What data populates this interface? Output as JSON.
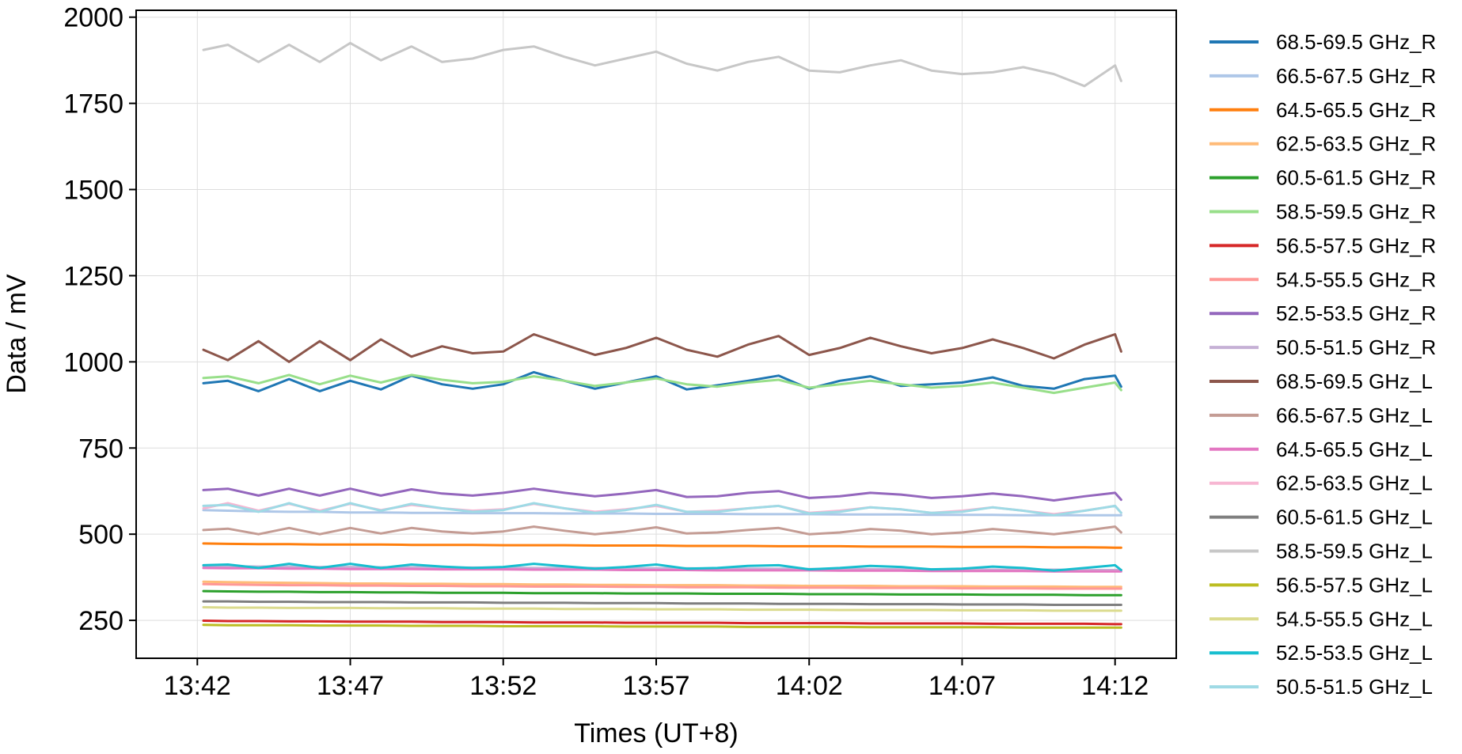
{
  "chart_data": {
    "type": "line",
    "title": "",
    "xlabel": "Times (UT+8)",
    "ylabel": "Data / mV",
    "grid": true,
    "legend_placement": "outside-right",
    "x_unit": "time (HH:MM, UT+8)",
    "xlim": [
      "13:40",
      "14:14"
    ],
    "ylim": [
      140,
      2020
    ],
    "x_ticks": [
      "13:42",
      "13:47",
      "13:52",
      "13:57",
      "14:02",
      "14:07",
      "14:12"
    ],
    "y_ticks": [
      250,
      500,
      750,
      1000,
      1250,
      1500,
      1750,
      2000
    ],
    "x": [
      "13:42.2",
      "13:43",
      "13:44",
      "13:45",
      "13:46",
      "13:47",
      "13:48",
      "13:49",
      "13:50",
      "13:51",
      "13:52",
      "13:53",
      "13:54",
      "13:55",
      "13:56",
      "13:57",
      "13:58",
      "13:59",
      "14:00",
      "14:01",
      "14:02",
      "14:03",
      "14:04",
      "14:05",
      "14:06",
      "14:07",
      "14:08",
      "14:09",
      "14:10",
      "14:11",
      "14:12",
      "14:12.2"
    ],
    "series": [
      {
        "name": "68.5-69.5 GHz_R",
        "color": "#1f77b4",
        "values": [
          938,
          945,
          915,
          950,
          915,
          945,
          920,
          960,
          935,
          922,
          935,
          970,
          945,
          922,
          940,
          958,
          920,
          932,
          945,
          960,
          922,
          945,
          958,
          930,
          935,
          940,
          955,
          930,
          922,
          950,
          960,
          928
        ]
      },
      {
        "name": "66.5-67.5 GHz_R",
        "color": "#aec7e8",
        "values": [
          570,
          568,
          566,
          565,
          565,
          563,
          563,
          562,
          562,
          561,
          561,
          561,
          560,
          560,
          560,
          559,
          559,
          559,
          558,
          558,
          558,
          557,
          557,
          557,
          556,
          556,
          556,
          555,
          555,
          555,
          555,
          555
        ]
      },
      {
        "name": "64.5-65.5 GHz_R",
        "color": "#ff7f0e",
        "values": [
          473,
          472,
          471,
          471,
          470,
          470,
          470,
          469,
          469,
          469,
          468,
          468,
          468,
          467,
          467,
          467,
          466,
          466,
          466,
          465,
          465,
          465,
          464,
          464,
          464,
          463,
          463,
          463,
          462,
          462,
          461,
          461
        ]
      },
      {
        "name": "62.5-63.5 GHz_R",
        "color": "#ffbb78",
        "values": [
          362,
          361,
          360,
          359,
          358,
          357,
          357,
          356,
          356,
          355,
          355,
          354,
          354,
          353,
          353,
          352,
          352,
          352,
          351,
          351,
          350,
          350,
          350,
          349,
          349,
          349,
          348,
          348,
          348,
          347,
          347,
          347
        ]
      },
      {
        "name": "60.5-61.5 GHz_R",
        "color": "#2ca02c",
        "values": [
          335,
          334,
          333,
          333,
          332,
          332,
          331,
          331,
          330,
          330,
          330,
          329,
          329,
          329,
          328,
          328,
          328,
          327,
          327,
          327,
          326,
          326,
          326,
          325,
          325,
          325,
          324,
          324,
          324,
          323,
          323,
          323
        ]
      },
      {
        "name": "58.5-59.5 GHz_R",
        "color": "#98df8a",
        "values": [
          953,
          958,
          938,
          962,
          935,
          960,
          940,
          962,
          948,
          938,
          942,
          958,
          945,
          930,
          940,
          952,
          935,
          928,
          940,
          948,
          925,
          935,
          945,
          935,
          925,
          930,
          940,
          925,
          910,
          925,
          940,
          918
        ]
      },
      {
        "name": "56.5-57.5 GHz_R",
        "color": "#d62728",
        "values": [
          249,
          248,
          248,
          247,
          247,
          246,
          246,
          246,
          245,
          245,
          245,
          244,
          244,
          244,
          243,
          243,
          243,
          243,
          242,
          242,
          242,
          242,
          241,
          241,
          241,
          241,
          240,
          240,
          240,
          240,
          239,
          239
        ]
      },
      {
        "name": "54.5-55.5 GHz_R",
        "color": "#ff9896",
        "values": [
          355,
          354,
          353,
          352,
          352,
          351,
          351,
          350,
          350,
          349,
          349,
          348,
          348,
          348,
          347,
          347,
          346,
          346,
          346,
          345,
          345,
          345,
          344,
          344,
          344,
          343,
          343,
          343,
          342,
          342,
          342,
          342
        ]
      },
      {
        "name": "52.5-53.5 GHz_R",
        "color": "#9467bd",
        "values": [
          628,
          632,
          612,
          632,
          612,
          632,
          612,
          630,
          618,
          612,
          620,
          632,
          620,
          610,
          618,
          628,
          608,
          610,
          620,
          625,
          605,
          610,
          620,
          615,
          605,
          610,
          618,
          610,
          598,
          610,
          620,
          600
        ]
      },
      {
        "name": "50.5-51.5 GHz_R",
        "color": "#c5b0d5",
        "values": [
          408,
          407,
          406,
          406,
          405,
          405,
          404,
          404,
          403,
          403,
          403,
          402,
          402,
          402,
          401,
          401,
          401,
          400,
          400,
          400,
          399,
          399,
          399,
          398,
          398,
          398,
          397,
          397,
          397,
          396,
          396,
          396
        ]
      },
      {
        "name": "68.5-69.5 GHz_L",
        "color": "#8c564b",
        "values": [
          1035,
          1005,
          1060,
          1000,
          1060,
          1005,
          1065,
          1015,
          1045,
          1025,
          1030,
          1080,
          1050,
          1020,
          1040,
          1070,
          1035,
          1015,
          1050,
          1075,
          1020,
          1040,
          1070,
          1045,
          1025,
          1040,
          1065,
          1040,
          1010,
          1050,
          1080,
          1030
        ]
      },
      {
        "name": "66.5-67.5 GHz_L",
        "color": "#c49c94",
        "values": [
          512,
          516,
          500,
          518,
          500,
          518,
          502,
          518,
          508,
          502,
          508,
          522,
          510,
          500,
          508,
          520,
          502,
          505,
          512,
          518,
          500,
          505,
          515,
          510,
          500,
          505,
          515,
          508,
          500,
          510,
          522,
          505
        ]
      },
      {
        "name": "64.5-65.5 GHz_L",
        "color": "#e377c2",
        "values": [
          402,
          401,
          401,
          400,
          400,
          399,
          399,
          399,
          398,
          398,
          398,
          397,
          397,
          397,
          396,
          396,
          396,
          395,
          395,
          395,
          395,
          394,
          394,
          394,
          393,
          393,
          393,
          393,
          392,
          392,
          392,
          392
        ]
      },
      {
        "name": "62.5-63.5 GHz_L",
        "color": "#f7b6d2",
        "values": [
          575,
          590,
          568,
          588,
          568,
          588,
          570,
          585,
          575,
          568,
          572,
          588,
          575,
          565,
          572,
          582,
          565,
          568,
          575,
          582,
          562,
          568,
          578,
          572,
          562,
          568,
          578,
          568,
          558,
          568,
          582,
          562
        ]
      },
      {
        "name": "60.5-61.5 GHz_L",
        "color": "#7f7f7f",
        "values": [
          305,
          305,
          304,
          304,
          303,
          303,
          303,
          302,
          302,
          302,
          301,
          301,
          301,
          300,
          300,
          300,
          299,
          299,
          299,
          298,
          298,
          298,
          297,
          297,
          297,
          296,
          296,
          296,
          295,
          295,
          295,
          295
        ]
      },
      {
        "name": "58.5-59.5 GHz_L",
        "color": "#c7c7c7",
        "values": [
          1905,
          1920,
          1870,
          1920,
          1870,
          1925,
          1875,
          1915,
          1870,
          1880,
          1905,
          1915,
          1885,
          1860,
          1880,
          1900,
          1865,
          1845,
          1870,
          1885,
          1845,
          1840,
          1860,
          1875,
          1845,
          1835,
          1840,
          1855,
          1835,
          1800,
          1860,
          1815
        ]
      },
      {
        "name": "56.5-57.5 GHz_L",
        "color": "#bcbd22",
        "values": [
          237,
          236,
          236,
          236,
          235,
          235,
          235,
          234,
          234,
          234,
          233,
          233,
          233,
          233,
          232,
          232,
          232,
          232,
          231,
          231,
          231,
          231,
          230,
          230,
          230,
          230,
          230,
          229,
          229,
          229,
          229,
          229
        ]
      },
      {
        "name": "54.5-55.5 GHz_L",
        "color": "#dbdb8d",
        "values": [
          288,
          287,
          287,
          286,
          286,
          286,
          285,
          285,
          285,
          284,
          284,
          284,
          283,
          283,
          283,
          282,
          282,
          282,
          281,
          281,
          281,
          280,
          280,
          280,
          280,
          279,
          279,
          279,
          278,
          278,
          278,
          278
        ]
      },
      {
        "name": "52.5-53.5 GHz_L",
        "color": "#17becf",
        "values": [
          410,
          412,
          402,
          414,
          402,
          414,
          402,
          412,
          406,
          402,
          405,
          414,
          407,
          400,
          405,
          412,
          400,
          402,
          408,
          410,
          398,
          402,
          408,
          405,
          398,
          400,
          406,
          402,
          394,
          402,
          410,
          396
        ]
      },
      {
        "name": "50.5-51.5 GHz_L",
        "color": "#9edae5",
        "values": [
          582,
          585,
          565,
          590,
          565,
          590,
          568,
          588,
          575,
          565,
          570,
          590,
          575,
          562,
          570,
          585,
          565,
          565,
          575,
          582,
          560,
          565,
          578,
          572,
          562,
          565,
          578,
          568,
          555,
          568,
          582,
          562
        ]
      }
    ]
  }
}
